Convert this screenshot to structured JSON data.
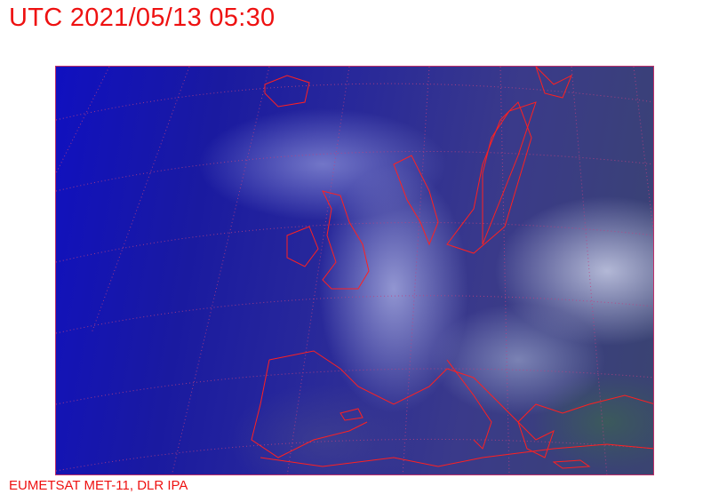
{
  "title": "UTC 2021/05/13 05:30",
  "credit": "EUMETSAT MET-11, DLR IPA",
  "colors": {
    "annotation": "#ee1111",
    "coastline": "#ff2020",
    "grid": "#c04080"
  }
}
